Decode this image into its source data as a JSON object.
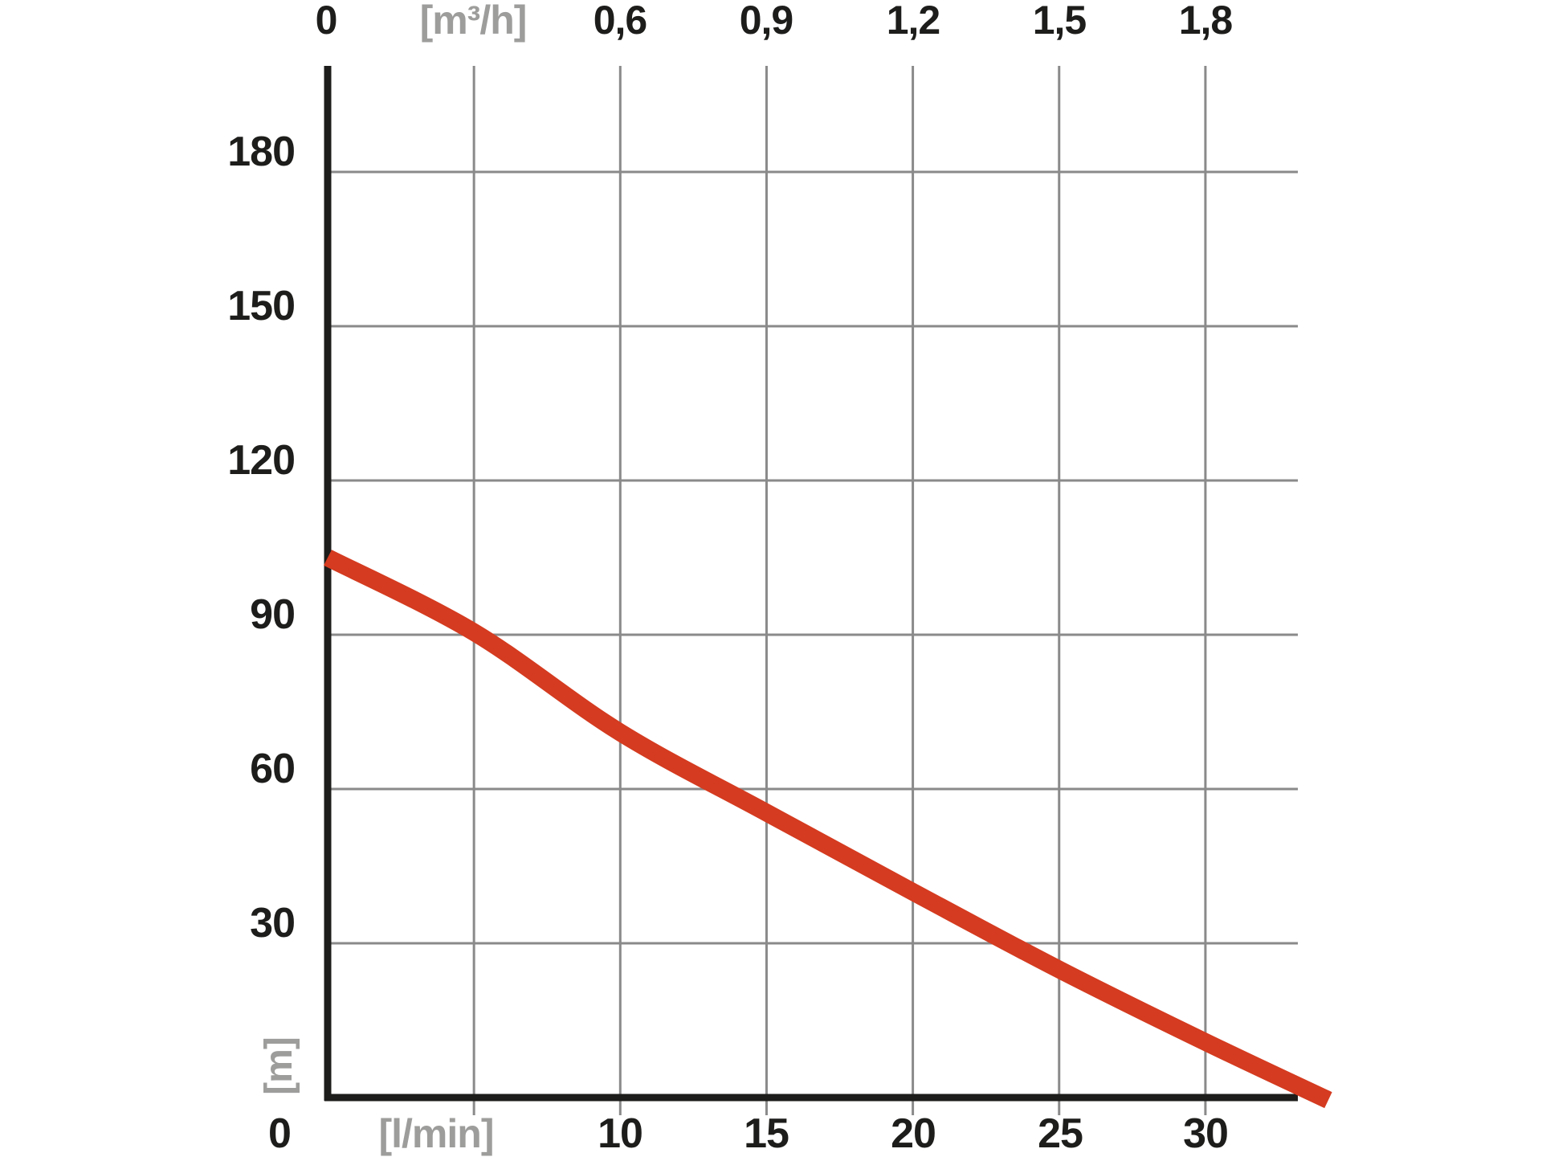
{
  "colors": {
    "text": "#1d1d1b",
    "muted_label": "#9d9d9c",
    "gridline": "#8a8a8a",
    "axis": "#1d1d1b",
    "curve": "#d43b20",
    "background": "#ffffff"
  },
  "chart": {
    "top_axis": {
      "unit": "[m³/h]",
      "origin": "0",
      "ticks": [
        "0,6",
        "0,9",
        "1,2",
        "1,5",
        "1,8"
      ]
    },
    "left_axis": {
      "unit": "[m]",
      "ticks": [
        "180",
        "150",
        "120",
        "90",
        "60",
        "30"
      ]
    },
    "bottom_axis": {
      "unit": "[l/min]",
      "origin": "0",
      "ticks": [
        "10",
        "15",
        "20",
        "25",
        "30"
      ]
    }
  },
  "chart_data": {
    "type": "line",
    "title": "",
    "xlabel_bottom": "[l/min]",
    "xlabel_top": "[m³/h]",
    "ylabel": "[m]",
    "x_range_lmin": [
      0,
      33.2
    ],
    "x_range_m3h": [
      0,
      1.99
    ],
    "y_range_m": [
      0,
      200
    ],
    "x_gridlines_lmin": [
      5,
      10,
      15,
      20,
      25,
      30
    ],
    "x_gridlines_m3h": [
      0.3,
      0.6,
      0.9,
      1.2,
      1.5,
      1.8
    ],
    "y_gridlines_m": [
      30,
      60,
      90,
      120,
      150,
      180
    ],
    "grid": true,
    "legend": false,
    "series": [
      {
        "name": "pump-head-flow-curve",
        "color": "#d43b20",
        "points_lmin_m": [
          [
            0,
            105
          ],
          [
            5,
            90.5
          ],
          [
            10,
            71
          ],
          [
            15,
            55.4
          ],
          [
            20,
            40
          ],
          [
            25,
            24.9
          ],
          [
            30,
            10.8
          ],
          [
            34.2,
            -0.5
          ]
        ]
      }
    ]
  }
}
